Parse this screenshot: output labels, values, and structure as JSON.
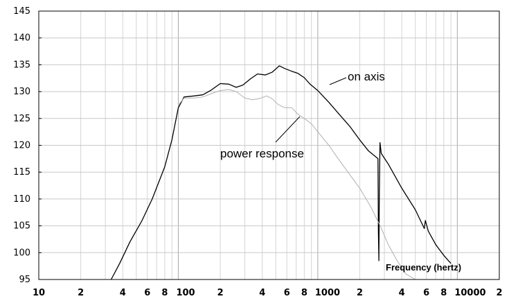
{
  "chart_data": {
    "type": "line",
    "title": "",
    "xlabel": "Frequency (hertz)",
    "ylabel": "",
    "x_scale": "log",
    "xlim": [
      10,
      20000
    ],
    "ylim": [
      95,
      145
    ],
    "grid": true,
    "y_ticks": [
      "145",
      "140",
      "135",
      "130",
      "125",
      "120",
      "115",
      "110",
      "105",
      "100",
      "95"
    ],
    "x_ticks": [
      {
        "value": 10,
        "label": "10"
      },
      {
        "value": 20,
        "label": "2"
      },
      {
        "value": 40,
        "label": "4"
      },
      {
        "value": 60,
        "label": "6"
      },
      {
        "value": 80,
        "label": "8"
      },
      {
        "value": 100,
        "label": "100"
      },
      {
        "value": 200,
        "label": "2"
      },
      {
        "value": 400,
        "label": "4"
      },
      {
        "value": 600,
        "label": "6"
      },
      {
        "value": 800,
        "label": "8"
      },
      {
        "value": 1000,
        "label": "1000"
      },
      {
        "value": 2000,
        "label": "2"
      },
      {
        "value": 4000,
        "label": "4"
      },
      {
        "value": 6000,
        "label": "6"
      },
      {
        "value": 8000,
        "label": "8"
      },
      {
        "value": 10000,
        "label": "10000"
      },
      {
        "value": 20000,
        "label": "2"
      }
    ],
    "annotations": {
      "on_axis": "on axis",
      "power_response": "power response"
    },
    "series": [
      {
        "name": "on axis",
        "color": "#000000",
        "points": [
          [
            33,
            95
          ],
          [
            38,
            98
          ],
          [
            45,
            102
          ],
          [
            55,
            106
          ],
          [
            65,
            110
          ],
          [
            80,
            116
          ],
          [
            90,
            121
          ],
          [
            100,
            127
          ],
          [
            110,
            129
          ],
          [
            130,
            129.2
          ],
          [
            150,
            129.4
          ],
          [
            170,
            130.2
          ],
          [
            200,
            131.5
          ],
          [
            230,
            131.4
          ],
          [
            260,
            130.8
          ],
          [
            290,
            131.2
          ],
          [
            330,
            132.4
          ],
          [
            370,
            133.3
          ],
          [
            420,
            133.1
          ],
          [
            470,
            133.6
          ],
          [
            530,
            134.8
          ],
          [
            580,
            134.3
          ],
          [
            650,
            133.8
          ],
          [
            720,
            133.4
          ],
          [
            800,
            132.6
          ],
          [
            880,
            131.4
          ],
          [
            1000,
            130.2
          ],
          [
            1200,
            128
          ],
          [
            1400,
            126
          ],
          [
            1700,
            123.5
          ],
          [
            2000,
            121
          ],
          [
            2300,
            119
          ],
          [
            2700,
            117.5
          ],
          [
            2720,
            104
          ],
          [
            2740,
            98.5
          ],
          [
            2760,
            110
          ],
          [
            2790,
            120.5
          ],
          [
            2850,
            118.5
          ],
          [
            3200,
            116.5
          ],
          [
            4000,
            112
          ],
          [
            5000,
            108
          ],
          [
            5800,
            104.5
          ],
          [
            5900,
            106
          ],
          [
            6200,
            104
          ],
          [
            7000,
            101.5
          ],
          [
            8000,
            99.5
          ],
          [
            9000,
            98
          ]
        ]
      },
      {
        "name": "power response",
        "color": "#b0b0b0",
        "points": [
          [
            100,
            127.5
          ],
          [
            110,
            128.8
          ],
          [
            130,
            128.8
          ],
          [
            150,
            129
          ],
          [
            180,
            129.8
          ],
          [
            200,
            130.2
          ],
          [
            230,
            130.4
          ],
          [
            260,
            130
          ],
          [
            300,
            128.8
          ],
          [
            340,
            128.5
          ],
          [
            380,
            128.7
          ],
          [
            430,
            129.2
          ],
          [
            470,
            128.7
          ],
          [
            520,
            127.6
          ],
          [
            580,
            127
          ],
          [
            650,
            127
          ],
          [
            720,
            125.8
          ],
          [
            800,
            125
          ],
          [
            900,
            124
          ],
          [
            1000,
            122.5
          ],
          [
            1200,
            120
          ],
          [
            1400,
            117.5
          ],
          [
            1700,
            114.5
          ],
          [
            2000,
            112
          ],
          [
            2400,
            108.5
          ],
          [
            2800,
            105
          ],
          [
            3200,
            101.5
          ],
          [
            3700,
            98.5
          ],
          [
            4300,
            96
          ],
          [
            5000,
            95
          ]
        ]
      }
    ]
  }
}
